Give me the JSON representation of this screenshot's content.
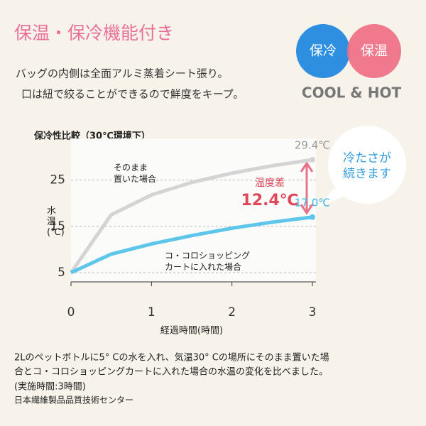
{
  "header": {
    "title": "保温・保冷機能付き",
    "description": [
      "バッグの内側は全面アルミ蒸着シート張り。",
      "口は紐で絞ることができるので鮮度をキープ。"
    ],
    "badges": [
      "保冷",
      "保温"
    ],
    "badge_caption": "COOL & HOT"
  },
  "chart_data": {
    "type": "line",
    "title": "保冷性比較（30℃環境下）",
    "x_label": "経過時間(時間)",
    "y_label": "水温(℃)",
    "x": [
      0,
      0.5,
      1,
      1.5,
      2,
      2.5,
      3
    ],
    "series": [
      {
        "name": "そのまま\n置いた場合",
        "color": "#d4d4d4",
        "values": [
          5,
          17.5,
          21.8,
          24.5,
          26.5,
          28.1,
          29.4
        ],
        "value_labels": [
          null,
          null,
          null,
          null,
          null,
          null,
          "29.4℃"
        ]
      },
      {
        "name": "コ・コロショッピング\nカートに入れた場合",
        "color": "#5ec6ea",
        "values": [
          5,
          9,
          11.2,
          13,
          14.6,
          15.9,
          17.0
        ],
        "value_labels": [
          null,
          null,
          null,
          null,
          null,
          null,
          "17.0℃"
        ]
      }
    ],
    "xlim": [
      0,
      3
    ],
    "xticks": [
      0,
      1,
      2,
      3
    ],
    "ylim": [
      3,
      34
    ],
    "yticks": [
      5,
      15,
      25
    ],
    "grid": true,
    "annotations": [
      "温度差",
      "12.4℃"
    ],
    "callout": "冷たさが\n続きます"
  },
  "footer": [
    "2Lのペットボトルに5° Cの水を入れ、気温30° Cの場所にそのまま置いた場",
    "合とコ・コロショッピングカートに入れた場合の水温の変化を比べました。",
    "(実施時間:3時間)",
    "日本繊維製品品質技術センター"
  ]
}
